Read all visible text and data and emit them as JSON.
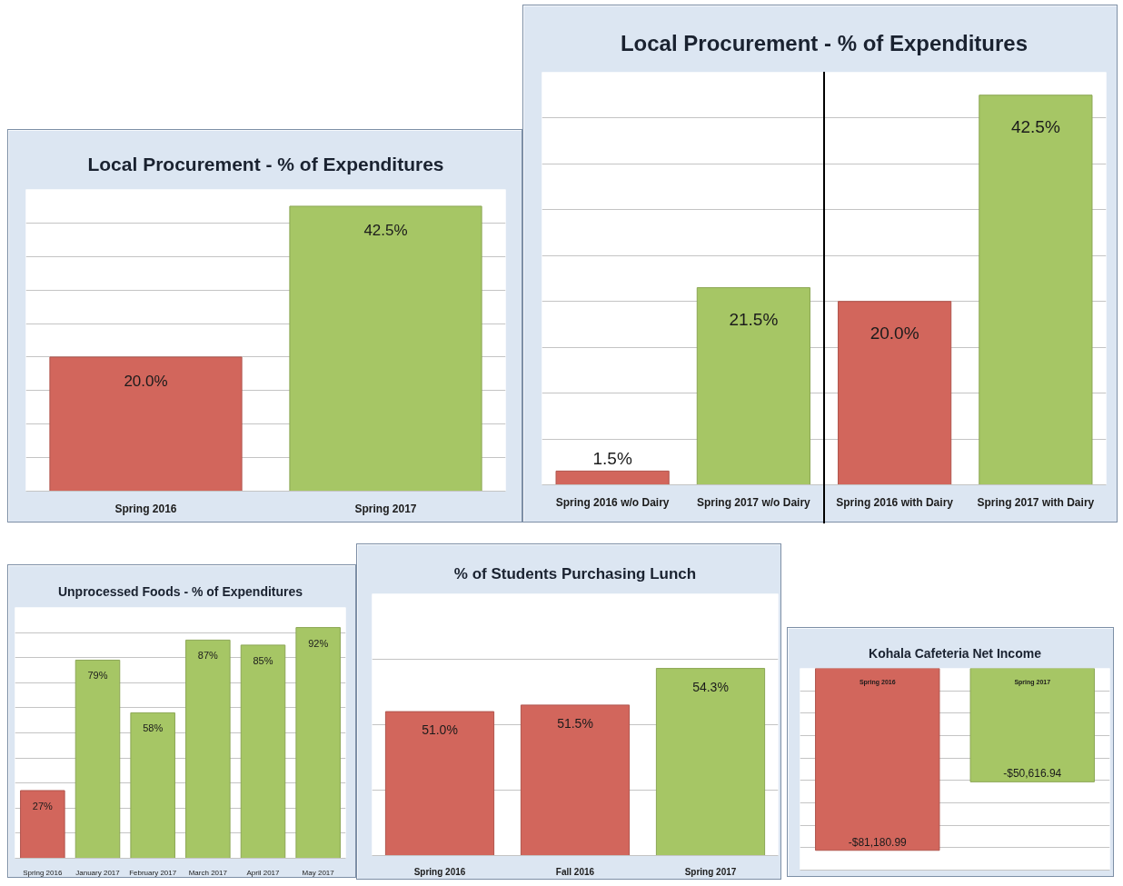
{
  "chart_data": [
    {
      "type": "bar",
      "title": "Local Procurement - % of Expenditures",
      "categories": [
        "Spring 2016",
        "Spring 2017"
      ],
      "values": [
        20.0,
        42.5
      ],
      "colors": [
        "#d2665c",
        "#a6c665"
      ],
      "value_labels": [
        "20.0%",
        "42.5%"
      ],
      "ylim": [
        0,
        45
      ],
      "yticks": [
        0,
        5,
        10,
        15,
        20,
        25,
        30,
        35,
        40,
        45
      ],
      "grid": "y",
      "tick_labels": "x"
    },
    {
      "type": "bar",
      "title": "Local Procurement - % of Expenditures",
      "categories": [
        "Spring 2016 w/o Dairy",
        "Spring 2017 w/o Dairy",
        "Spring 2016 with Dairy",
        "Spring 2017 with Dairy"
      ],
      "values": [
        1.5,
        21.5,
        20.0,
        42.5
      ],
      "colors": [
        "#d2665c",
        "#a6c665",
        "#d2665c",
        "#a6c665"
      ],
      "value_labels": [
        "1.5%",
        "21.5%",
        "20.0%",
        "42.5%"
      ],
      "ylim": [
        0,
        45
      ],
      "yticks": [
        0,
        5,
        10,
        15,
        20,
        25,
        30,
        35,
        40,
        45
      ],
      "grid": "y",
      "tick_labels": "x"
    },
    {
      "type": "bar",
      "title": "Unprocessed Foods - % of Expenditures",
      "categories": [
        "Spring 2016",
        "January 2017",
        "February 2017",
        "March 2017",
        "April 2017",
        "May 2017"
      ],
      "values": [
        27,
        79,
        58,
        87,
        85,
        92
      ],
      "colors": [
        "#d2665c",
        "#a6c665",
        "#a6c665",
        "#a6c665",
        "#a6c665",
        "#a6c665"
      ],
      "value_labels": [
        "27%",
        "79%",
        "58%",
        "87%",
        "85%",
        "92%"
      ],
      "ylim": [
        0,
        100
      ],
      "yticks": [
        0,
        10,
        20,
        30,
        40,
        50,
        60,
        70,
        80,
        90,
        100
      ],
      "grid": "y",
      "tick_labels": "x"
    },
    {
      "type": "bar",
      "title": "% of Students Purchasing Lunch",
      "categories": [
        "Spring 2016",
        "Fall 2016",
        "Spring 2017"
      ],
      "values": [
        51.0,
        51.5,
        54.3
      ],
      "colors": [
        "#d2665c",
        "#d2665c",
        "#a6c665"
      ],
      "value_labels": [
        "51.0%",
        "51.5%",
        "54.3%"
      ],
      "ylim": [
        40,
        60
      ],
      "yticks": [
        40,
        45,
        50,
        55,
        60
      ],
      "grid": "y",
      "tick_labels": "x"
    },
    {
      "type": "bar",
      "title": "Kohala Cafeteria Net Income",
      "categories": [
        "Spring 2016",
        "Spring 2017"
      ],
      "values": [
        -81180.99,
        -50616.94
      ],
      "colors": [
        "#d2665c",
        "#a6c665"
      ],
      "value_labels": [
        "-$81,180.99",
        "-$50,616.94"
      ],
      "ylim": [
        -90000,
        0
      ],
      "yticks": [
        -90000,
        -80000,
        -70000,
        -60000,
        -50000,
        -40000,
        -30000,
        -20000,
        -10000,
        0
      ],
      "grid": "y",
      "tick_labels": "x"
    }
  ]
}
